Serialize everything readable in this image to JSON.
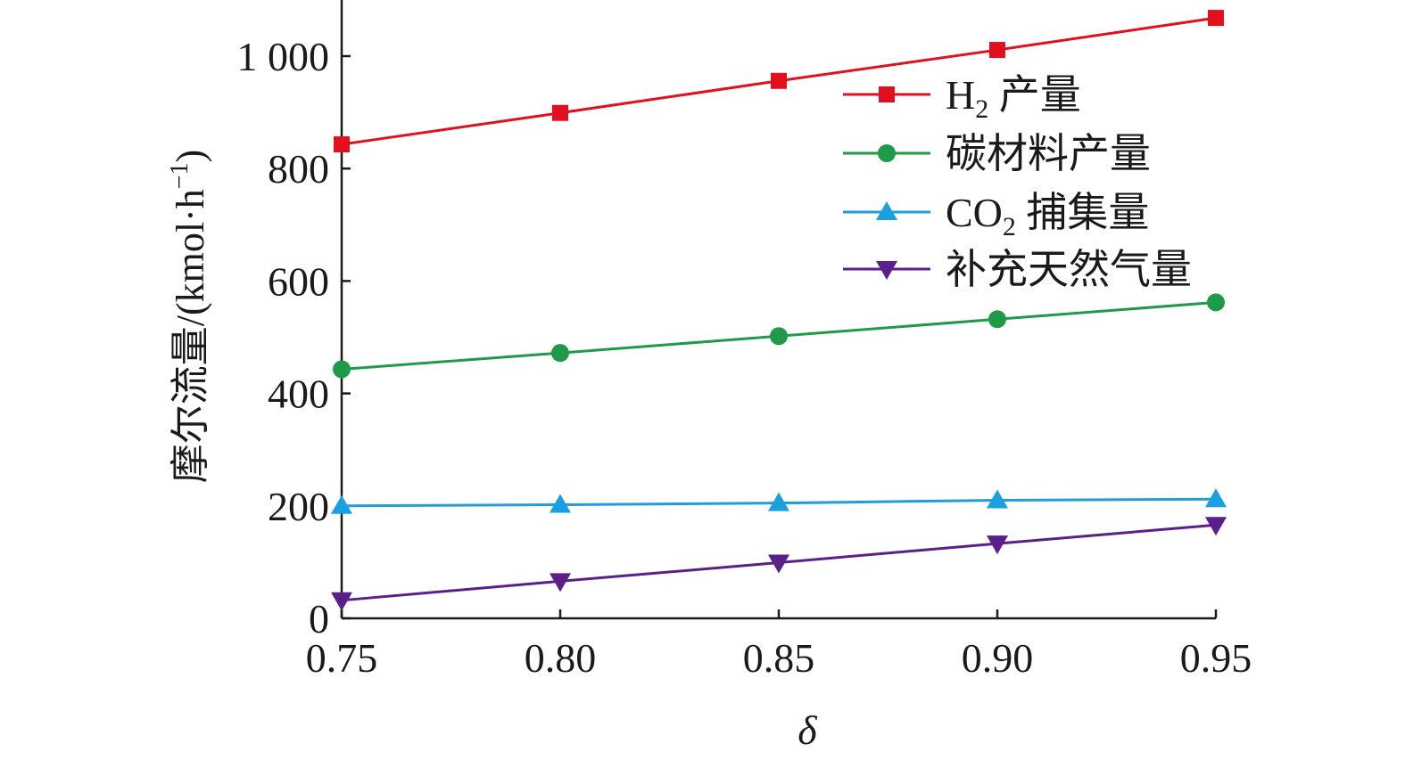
{
  "chart_data": {
    "type": "line",
    "xlabel": "δ",
    "ylabel": "摩尔流量/(kmol·h",
    "ylabel_sup": "−1",
    "ylabel_close": ")",
    "x": [
      0.75,
      0.8,
      0.85,
      0.9,
      0.95
    ],
    "x_tick_labels": [
      "0.75",
      "0.80",
      "0.85",
      "0.90",
      "0.95"
    ],
    "xlim": [
      0.75,
      0.95
    ],
    "ylim": [
      0,
      1100
    ],
    "y_ticks": [
      0,
      200,
      400,
      600,
      800,
      1000
    ],
    "y_tick_labels": [
      "0",
      "200",
      "400",
      "600",
      "800",
      "1 000"
    ],
    "grid": false,
    "legend_position": "top-right",
    "series": [
      {
        "name": "H₂ 产量",
        "name_main": "H",
        "name_sub": "2",
        "name_rest": " 产量",
        "color": "#e2101e",
        "marker": "square",
        "values": [
          843,
          899,
          956,
          1011,
          1068
        ]
      },
      {
        "name": "碳材料产量",
        "name_main": "碳材料产量",
        "name_sub": "",
        "name_rest": "",
        "color": "#1f9a48",
        "marker": "circle",
        "values": [
          443,
          472,
          502,
          532,
          562
        ]
      },
      {
        "name": "CO₂ 捕集量",
        "name_main": "CO",
        "name_sub": "2",
        "name_rest": " 捕集量",
        "color": "#1a9fe0",
        "marker": "triangle-up",
        "values": [
          200,
          202,
          205,
          210,
          212
        ]
      },
      {
        "name": "补充天然气量",
        "name_main": "补充天然气量",
        "name_sub": "",
        "name_rest": "",
        "color": "#5b1f8a",
        "marker": "triangle-down",
        "values": [
          32,
          66,
          99,
          133,
          166
        ]
      }
    ]
  }
}
